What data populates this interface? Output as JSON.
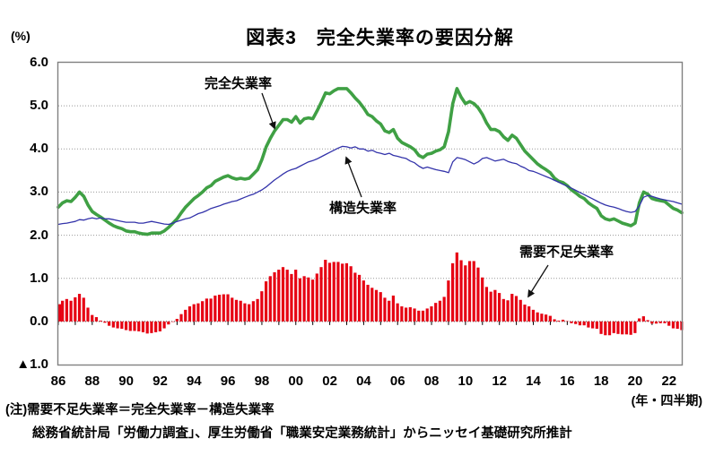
{
  "page": {
    "title": "図表3　完全失業率の要因分解"
  },
  "y_axis": {
    "unit": "(%)",
    "tick_labels": [
      "6.0",
      "5.0",
      "4.0",
      "3.0",
      "2.0",
      "1.0",
      "0.0",
      "▲1.0"
    ],
    "tick_values": [
      6,
      5,
      4,
      3,
      2,
      1,
      0,
      -1
    ]
  },
  "x_axis": {
    "tick_labels": [
      "86",
      "88",
      "90",
      "92",
      "94",
      "96",
      "98",
      "00",
      "02",
      "04",
      "06",
      "08",
      "10",
      "12",
      "14",
      "16",
      "18",
      "20",
      "22"
    ],
    "unit": "(年・四半期)"
  },
  "annotations": {
    "total": "完全失業率",
    "structural": "構造失業率",
    "demand": "需要不足失業率"
  },
  "notes": {
    "line1": "(注)需要不足失業率＝完全失業率－構造失業率",
    "line2": "総務省統計局「労働力調査」、厚生労働省「職業安定業務統計」からニッセイ基礎研究所推計"
  },
  "colors": {
    "total": "#3FA044",
    "structural": "#3333AA",
    "demand": "#E60012",
    "grid": "#999999",
    "border": "#808080",
    "arrow": "#111111"
  },
  "chart_data": {
    "type": "line+bar",
    "frequency": "quarterly",
    "x_range": [
      "1986Q1",
      "2022Q4"
    ],
    "ylim": [
      -1,
      6
    ],
    "grid": true,
    "series": [
      {
        "name": "完全失業率",
        "type": "line",
        "color": "#3FA044",
        "values": [
          2.65,
          2.75,
          2.8,
          2.78,
          2.88,
          3.0,
          2.9,
          2.7,
          2.55,
          2.48,
          2.42,
          2.35,
          2.28,
          2.22,
          2.18,
          2.15,
          2.1,
          2.08,
          2.08,
          2.05,
          2.03,
          2.02,
          2.05,
          2.05,
          2.05,
          2.1,
          2.18,
          2.28,
          2.38,
          2.52,
          2.65,
          2.75,
          2.85,
          2.92,
          3.0,
          3.1,
          3.15,
          3.25,
          3.3,
          3.35,
          3.38,
          3.33,
          3.3,
          3.32,
          3.3,
          3.32,
          3.42,
          3.52,
          3.75,
          4.05,
          4.25,
          4.42,
          4.55,
          4.68,
          4.68,
          4.62,
          4.75,
          4.6,
          4.7,
          4.72,
          4.7,
          4.88,
          5.08,
          5.3,
          5.28,
          5.35,
          5.4,
          5.4,
          5.4,
          5.3,
          5.18,
          5.08,
          4.95,
          4.8,
          4.75,
          4.65,
          4.58,
          4.42,
          4.38,
          4.45,
          4.25,
          4.15,
          4.1,
          4.05,
          3.98,
          3.85,
          3.8,
          3.88,
          3.9,
          3.95,
          3.98,
          4.05,
          4.4,
          5.05,
          5.4,
          5.2,
          5.05,
          5.1,
          5.05,
          4.95,
          4.8,
          4.6,
          4.45,
          4.45,
          4.4,
          4.28,
          4.2,
          4.32,
          4.25,
          4.1,
          3.95,
          3.85,
          3.75,
          3.65,
          3.58,
          3.52,
          3.45,
          3.32,
          3.25,
          3.22,
          3.15,
          3.05,
          2.98,
          2.9,
          2.85,
          2.75,
          2.68,
          2.62,
          2.45,
          2.38,
          2.35,
          2.38,
          2.33,
          2.28,
          2.25,
          2.22,
          2.28,
          2.75,
          3.0,
          2.95,
          2.85,
          2.82,
          2.8,
          2.78,
          2.7,
          2.62,
          2.58,
          2.52
        ]
      },
      {
        "name": "構造失業率",
        "type": "line",
        "color": "#3333AA",
        "values": [
          2.25,
          2.27,
          2.28,
          2.3,
          2.32,
          2.36,
          2.35,
          2.38,
          2.4,
          2.38,
          2.4,
          2.38,
          2.38,
          2.36,
          2.34,
          2.32,
          2.3,
          2.3,
          2.3,
          2.28,
          2.28,
          2.3,
          2.32,
          2.3,
          2.28,
          2.26,
          2.25,
          2.28,
          2.32,
          2.35,
          2.38,
          2.4,
          2.45,
          2.5,
          2.53,
          2.57,
          2.62,
          2.65,
          2.68,
          2.72,
          2.75,
          2.78,
          2.8,
          2.84,
          2.88,
          2.92,
          2.95,
          3.0,
          3.05,
          3.12,
          3.2,
          3.28,
          3.35,
          3.42,
          3.48,
          3.52,
          3.55,
          3.6,
          3.65,
          3.7,
          3.73,
          3.77,
          3.82,
          3.87,
          3.92,
          3.97,
          4.02,
          4.06,
          4.05,
          4.02,
          4.05,
          4.0,
          4.0,
          3.95,
          3.97,
          3.92,
          3.9,
          3.87,
          3.9,
          3.85,
          3.83,
          3.8,
          3.78,
          3.72,
          3.68,
          3.6,
          3.55,
          3.58,
          3.55,
          3.52,
          3.5,
          3.48,
          3.45,
          3.7,
          3.8,
          3.78,
          3.75,
          3.7,
          3.65,
          3.7,
          3.78,
          3.8,
          3.76,
          3.72,
          3.74,
          3.76,
          3.71,
          3.68,
          3.66,
          3.6,
          3.56,
          3.5,
          3.48,
          3.44,
          3.4,
          3.36,
          3.32,
          3.27,
          3.23,
          3.18,
          3.14,
          3.09,
          3.04,
          2.99,
          2.94,
          2.89,
          2.84,
          2.79,
          2.74,
          2.7,
          2.67,
          2.65,
          2.62,
          2.58,
          2.55,
          2.53,
          2.55,
          2.68,
          2.88,
          2.92,
          2.9,
          2.87,
          2.84,
          2.82,
          2.8,
          2.78,
          2.75,
          2.72
        ]
      },
      {
        "name": "需要不足失業率",
        "type": "bar",
        "color": "#E60012",
        "derived_from": "完全失業率－構造失業率"
      }
    ]
  }
}
